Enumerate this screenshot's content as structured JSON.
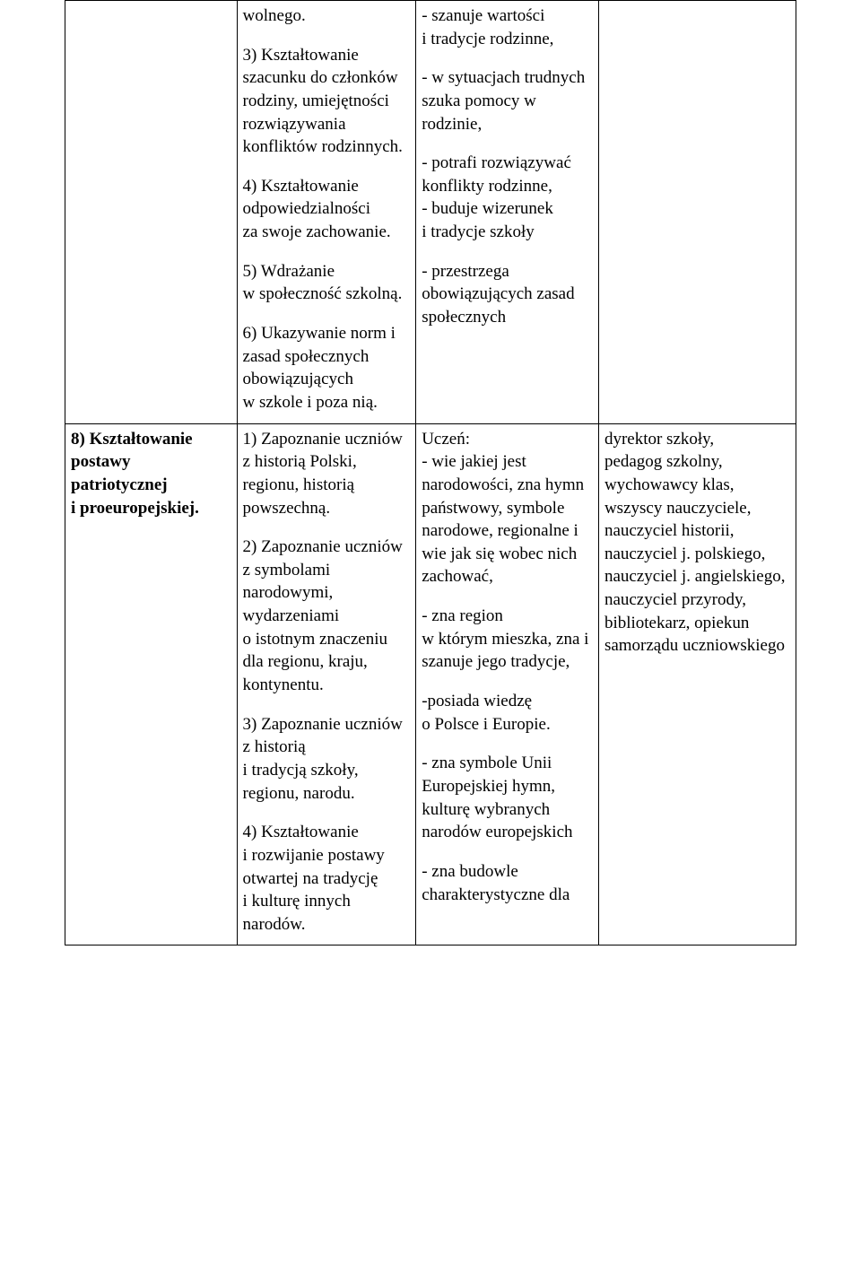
{
  "row1": {
    "col1": "",
    "col2": {
      "p1": "wolnego.",
      "p2": "3) Kształtowanie szacunku do członków rodziny, umiejętności rozwiązywania konfliktów rodzinnych.",
      "p3": "4) Kształtowanie odpowiedzialności\n za swoje zachowanie.",
      "p4": "5) Wdrażanie\nw społeczność szkolną.",
      "p5": "6) Ukazywanie norm i zasad społecznych obowiązujących\nw szkole i poza nią."
    },
    "col3": {
      "p1": "- szanuje wartości\n i tradycje rodzinne,",
      "p2": "- w sytuacjach trudnych szuka pomocy w rodzinie,",
      "p3": "-  potrafi rozwiązywać konflikty rodzinne,\n- buduje wizerunek\n i tradycje szkoły",
      "p4": "- przestrzega obowiązujących zasad społecznych"
    },
    "col4": ""
  },
  "row2": {
    "col1": "8) Kształtowanie postawy patriotycznej\ni proeuropejskiej.",
    "col2": {
      "p1": "1) Zapoznanie uczniów z historią Polski, regionu, historią powszechną.",
      "p2": "2) Zapoznanie uczniów\nz symbolami narodowymi, wydarzeniami\no istotnym znaczeniu dla regionu, kraju, kontynentu.",
      "p3": "3) Zapoznanie uczniów z historią\n i tradycją szkoły, regionu, narodu.",
      "p4": "4) Kształtowanie\ni rozwijanie postawy otwartej na tradycję\ni kulturę innych narodów."
    },
    "col3": {
      "p1": "Uczeń:\n- wie jakiej jest narodowości, zna hymn państwowy, symbole narodowe, regionalne i wie jak się wobec nich zachować,",
      "p2": "- zna region\nw którym mieszka, zna i szanuje jego tradycje,",
      "p3": "-posiada wiedzę\no Polsce i Europie.",
      "p4": "- zna symbole Unii Europejskiej hymn, kulturę wybranych narodów europejskich",
      "p5": "- zna budowle charakterystyczne dla"
    },
    "col4": "dyrektor szkoły,\n pedagog szkolny, wychowawcy klas, wszyscy nauczyciele, nauczyciel historii, nauczyciel j. polskiego, nauczyciel j. angielskiego, nauczyciel przyrody, bibliotekarz, opiekun samorządu uczniowskiego"
  }
}
